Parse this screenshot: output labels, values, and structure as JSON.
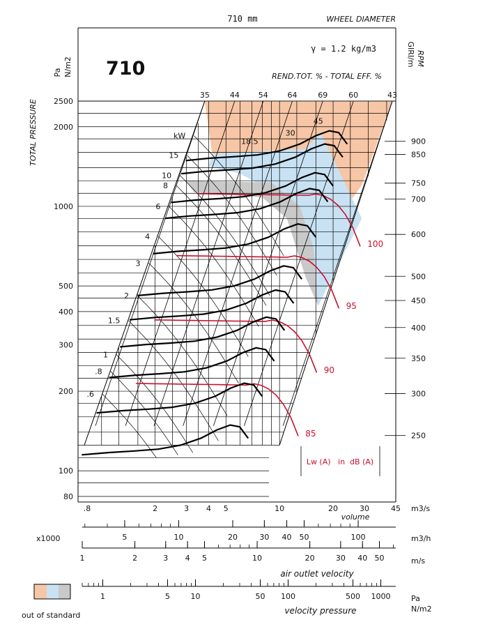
{
  "chart_data": {
    "type": "line",
    "title": "710",
    "header": {
      "diameter": "710 mm",
      "diameter_label": "WHEEL DIAMETER",
      "density": "γ = 1.2 kg/m3",
      "efficiency_label": "REND.TOT. % - TOTAL EFF. %"
    },
    "ylabel": "TOTAL PRESSURE",
    "yunit_left": [
      "Pa",
      "N/m2"
    ],
    "yunit_right": [
      "GIRI/m",
      "RPM"
    ],
    "xlabel": "volume",
    "x_scale": "log",
    "y_scale": "log",
    "xlim": [
      0.8,
      45
    ],
    "ylim": [
      80,
      2500
    ],
    "grid": true,
    "pressure_ticks": [
      {
        "v": 2500,
        "label": "2500"
      },
      {
        "v": 2000,
        "label": "2000"
      },
      {
        "v": 1000,
        "label": "1000"
      },
      {
        "v": 500,
        "label": "500"
      },
      {
        "v": 400,
        "label": "400"
      },
      {
        "v": 300,
        "label": "300"
      },
      {
        "v": 200,
        "label": "200"
      },
      {
        "v": 100,
        "label": "100"
      },
      {
        "v": 80,
        "label": "80"
      }
    ],
    "volume_ticks": [
      {
        "v": 0.8,
        "label": ".8"
      },
      {
        "v": 2,
        "label": "2"
      },
      {
        "v": 3,
        "label": "3"
      },
      {
        "v": 4,
        "label": "4"
      },
      {
        "v": 5,
        "label": "5"
      },
      {
        "v": 10,
        "label": "10"
      },
      {
        "v": 20,
        "label": "20"
      },
      {
        "v": 30,
        "label": "30"
      },
      {
        "v": 45,
        "label": "45"
      }
    ],
    "volume_unit": "m3/s",
    "efficiency_labels": [
      {
        "v": 3.8,
        "label": "35"
      },
      {
        "v": 5.6,
        "label": "44"
      },
      {
        "v": 8.1,
        "label": "54"
      },
      {
        "v": 11.8,
        "label": "64"
      },
      {
        "v": 17.5,
        "label": "69"
      },
      {
        "v": 26,
        "label": "60"
      },
      {
        "v": 43,
        "label": "43"
      }
    ],
    "rpm_curves": [
      {
        "rpm": 900,
        "label": "900"
      },
      {
        "rpm": 850,
        "label": "850"
      },
      {
        "rpm": 750,
        "label": "750"
      },
      {
        "rpm": 700,
        "label": "700"
      },
      {
        "rpm": 600,
        "label": "600"
      },
      {
        "rpm": 500,
        "label": "500"
      },
      {
        "rpm": 450,
        "label": "450"
      },
      {
        "rpm": 400,
        "label": "400"
      },
      {
        "rpm": 350,
        "label": "350"
      },
      {
        "rpm": 300,
        "label": "300"
      },
      {
        "rpm": 250,
        "label": "250"
      }
    ],
    "reference_curve": {
      "rpm": 900,
      "x": [
        4.0,
        5.5,
        7.5,
        10.0,
        13.0,
        16.0,
        19.0,
        21.5,
        24.0
      ],
      "y": [
        1520,
        1540,
        1565,
        1620,
        1720,
        1850,
        1930,
        1900,
        1720
      ]
    },
    "power_labels": [
      {
        "label": "kW",
        "p": 1850
      },
      {
        "label": "15",
        "p": 1560
      },
      {
        "label": "10",
        "p": 1310
      },
      {
        "label": "8",
        "p": 1200
      },
      {
        "label": "6",
        "p": 1000
      },
      {
        "label": "4",
        "p": 770
      },
      {
        "label": "3",
        "p": 610
      },
      {
        "label": "2",
        "p": 460
      },
      {
        "label": "1.5",
        "p": 370
      },
      {
        "label": "1",
        "p": 275
      },
      {
        "label": ".8",
        "p": 238
      },
      {
        "label": ".6",
        "p": 195
      }
    ],
    "power_inside_labels": [
      {
        "label": "18.5",
        "q": 6.8,
        "p": 1720
      },
      {
        "label": "30",
        "q": 11.5,
        "p": 1850
      },
      {
        "label": "45",
        "q": 16.5,
        "p": 2050
      }
    ],
    "noise_labels": [
      {
        "label": "100",
        "q": 29,
        "p": 720
      },
      {
        "label": "95",
        "q": 22,
        "p": 420
      },
      {
        "label": "90",
        "q": 16.5,
        "p": 240
      },
      {
        "label": "85",
        "q": 13,
        "p": 138
      }
    ],
    "noise_legend": "Lw (A)   in  dB (A)",
    "flow_scale": {
      "prefix": "x1000",
      "unit": "m3/h",
      "ticks": [
        {
          "v": 5,
          "label": "5"
        },
        {
          "v": 10,
          "label": "10"
        },
        {
          "v": 20,
          "label": "20"
        },
        {
          "v": 30,
          "label": "30"
        },
        {
          "v": 40,
          "label": "40"
        },
        {
          "v": 50,
          "label": "50"
        },
        {
          "v": 100,
          "label": "100"
        }
      ]
    },
    "velocity_scale": {
      "label": "air outlet velocity",
      "unit": "m/s",
      "ticks": [
        {
          "v": 1,
          "label": "1"
        },
        {
          "v": 2,
          "label": "2"
        },
        {
          "v": 3,
          "label": "3"
        },
        {
          "v": 4,
          "label": "4"
        },
        {
          "v": 5,
          "label": "5"
        },
        {
          "v": 10,
          "label": "10"
        },
        {
          "v": 20,
          "label": "20"
        },
        {
          "v": 30,
          "label": "30"
        },
        {
          "v": 40,
          "label": "40"
        },
        {
          "v": 50,
          "label": "50"
        }
      ]
    },
    "vp_scale": {
      "label": "velocity pressure",
      "unit": [
        "Pa",
        "N/m2"
      ],
      "ticks": [
        {
          "v": 1,
          "label": "1"
        },
        {
          "v": 5,
          "label": "5"
        },
        {
          "v": 10,
          "label": "10"
        },
        {
          "v": 50,
          "label": "50"
        },
        {
          "v": 100,
          "label": "100"
        },
        {
          "v": 500,
          "label": "500"
        },
        {
          "v": 1000,
          "label": "1000"
        }
      ]
    },
    "legend": {
      "label": "out of standard",
      "colors": [
        "#f6c6a6",
        "#c8e2f3",
        "#c9c9c9"
      ]
    },
    "colors": {
      "curve": "#000000",
      "noise": "#c8102e",
      "zone_orange": "#f6c6a6",
      "zone_blue": "#c8e2f3",
      "zone_gray": "#c9c9c9"
    }
  }
}
